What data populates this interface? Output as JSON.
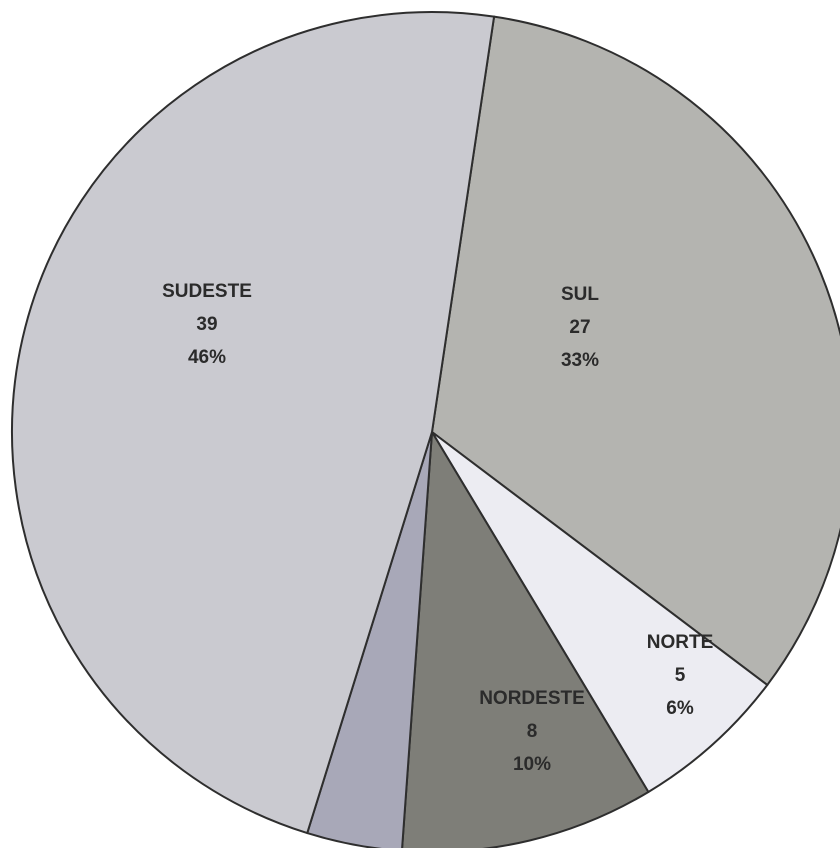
{
  "chart_data": {
    "type": "pie",
    "title": "",
    "slices": [
      {
        "label": "SUL",
        "value": 27,
        "percent": "33%",
        "color": "#b4b4b0"
      },
      {
        "label": "NORTE",
        "value": 5,
        "percent": "6%",
        "color": "#ececf2"
      },
      {
        "label": "NORDESTE",
        "value": 8,
        "percent": "10%",
        "color": "#7e7e78"
      },
      {
        "label": "",
        "value": 3,
        "percent": "",
        "color": "#a8a8b8"
      },
      {
        "label": "SUDESTE",
        "value": 39,
        "percent": "46%",
        "color": "#cacad0"
      }
    ],
    "value_texts": [
      "27",
      "5",
      "8",
      "",
      "39"
    ],
    "outline_color": "#2e2e2e"
  }
}
